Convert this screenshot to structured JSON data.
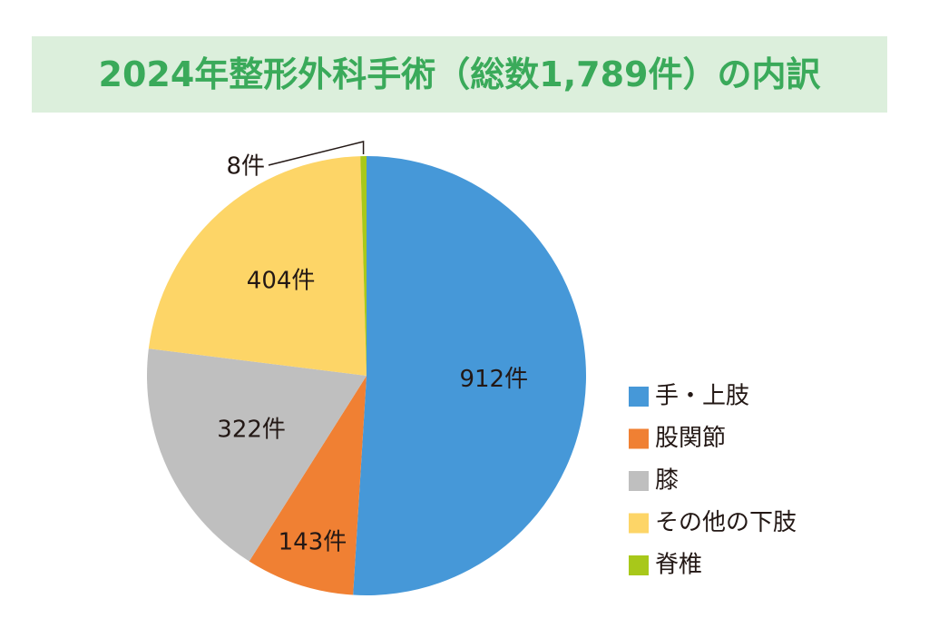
{
  "chart_data": {
    "type": "pie",
    "title": "2024年整形外科手術（総数1,789件）の内訳",
    "categories": [
      "手・上肢",
      "股関節",
      "膝",
      "その他の下肢",
      "脊椎"
    ],
    "values": [
      912,
      143,
      322,
      404,
      8
    ],
    "value_labels": [
      "912件",
      "143件",
      "322件",
      "404件",
      "8件"
    ],
    "colors": [
      "#4698d8",
      "#f08033",
      "#bfbfbf",
      "#fdd567",
      "#a8c81a"
    ],
    "legend": "right"
  }
}
